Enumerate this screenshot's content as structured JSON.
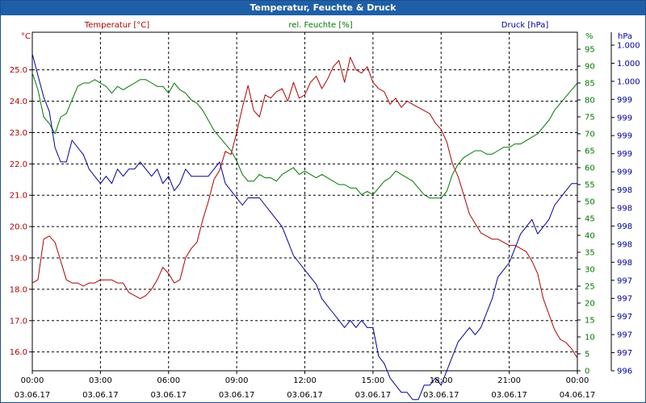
{
  "window": {
    "title": "Temperatur, Feuchte & Druck"
  },
  "chart_data": {
    "type": "line",
    "title": "Temperatur, Feuchte & Druck",
    "grid": true,
    "colors": {
      "temperature": "#b00000",
      "humidity": "#007700",
      "pressure": "#00009a"
    },
    "x_ticks": [
      {
        "time": "00:00",
        "date": "03.06.17"
      },
      {
        "time": "03:00",
        "date": "03.06.17"
      },
      {
        "time": "06:00",
        "date": "03.06.17"
      },
      {
        "time": "09:00",
        "date": "03.06.17"
      },
      {
        "time": "12:00",
        "date": "03.06.17"
      },
      {
        "time": "15:00",
        "date": "03.06.17"
      },
      {
        "time": "18:00",
        "date": "03.06.17"
      },
      {
        "time": "21:00",
        "date": "03.06.17"
      },
      {
        "time": "00:00",
        "date": "04.06.17"
      }
    ],
    "x_range_hours": [
      0,
      24
    ],
    "axes": {
      "temperature": {
        "label": "Temperatur [°C]",
        "unit": "°C",
        "min": 15.4,
        "max": 26.2,
        "ticks": [
          "16.0",
          "17.0",
          "18.0",
          "19.0",
          "20.0",
          "21.0",
          "22.0",
          "23.0",
          "24.0",
          "25.0"
        ]
      },
      "humidity": {
        "label": "rel. Feuchte [%]",
        "unit": "%",
        "min": 0,
        "max": 100,
        "ticks": [
          "0",
          "5",
          "10",
          "15",
          "20",
          "25",
          "30",
          "35",
          "40",
          "45",
          "50",
          "55",
          "60",
          "65",
          "70",
          "75",
          "80",
          "85",
          "90",
          "95"
        ]
      },
      "pressure": {
        "label": "Druck [hPa]",
        "unit": "hPa",
        "min": 996.0,
        "max": 1000.7,
        "ticks": [
          "996",
          "997",
          "997",
          "997",
          "997",
          "997",
          "998",
          "998",
          "998",
          "998",
          "998",
          "999",
          "999",
          "999",
          "999",
          "999",
          "1.000",
          "1.000",
          "1.000"
        ]
      }
    },
    "series": [
      {
        "name": "Temperatur [°C]",
        "axis": "temperature",
        "x": [
          0,
          0.25,
          0.5,
          0.75,
          1,
          1.25,
          1.5,
          1.75,
          2,
          2.25,
          2.5,
          2.75,
          3,
          3.25,
          3.5,
          3.75,
          4,
          4.25,
          4.5,
          4.75,
          5,
          5.25,
          5.5,
          5.75,
          6,
          6.25,
          6.5,
          6.75,
          7,
          7.25,
          7.5,
          7.75,
          8,
          8.25,
          8.5,
          8.75,
          9,
          9.25,
          9.5,
          9.75,
          10,
          10.25,
          10.5,
          10.75,
          11,
          11.25,
          11.5,
          11.75,
          12,
          12.25,
          12.5,
          12.75,
          13,
          13.25,
          13.5,
          13.75,
          14,
          14.25,
          14.5,
          14.75,
          15,
          15.25,
          15.5,
          15.75,
          16,
          16.25,
          16.5,
          16.75,
          17,
          17.25,
          17.5,
          17.75,
          18,
          18.25,
          18.5,
          18.75,
          19,
          19.25,
          19.5,
          19.75,
          20,
          20.25,
          20.5,
          20.75,
          21,
          21.25,
          21.5,
          21.75,
          22,
          22.25,
          22.5,
          22.75,
          23,
          23.25,
          23.5,
          23.75,
          24
        ],
        "values": [
          18.2,
          18.3,
          19.6,
          19.7,
          19.5,
          18.9,
          18.3,
          18.2,
          18.2,
          18.1,
          18.2,
          18.2,
          18.3,
          18.3,
          18.3,
          18.2,
          18.2,
          17.9,
          17.8,
          17.7,
          17.8,
          18.0,
          18.3,
          18.7,
          18.5,
          18.2,
          18.3,
          19.0,
          19.3,
          19.5,
          20.2,
          20.8,
          21.5,
          21.8,
          22.4,
          22.3,
          23.0,
          23.8,
          24.5,
          23.7,
          23.5,
          24.2,
          24.1,
          24.3,
          24.4,
          24.0,
          24.6,
          24.1,
          24.2,
          24.6,
          24.8,
          24.4,
          24.7,
          25.1,
          25.3,
          24.6,
          25.4,
          25.0,
          24.9,
          25.1,
          24.6,
          24.4,
          24.3,
          23.9,
          24.1,
          23.8,
          24.0,
          23.9,
          23.8,
          23.7,
          23.6,
          23.3,
          23.1,
          22.7,
          22.0,
          21.6,
          21.0,
          20.4,
          20.1,
          19.8,
          19.7,
          19.6,
          19.6,
          19.5,
          19.4,
          19.4,
          19.3,
          19.2,
          18.9,
          18.5,
          17.7,
          17.2,
          16.7,
          16.4,
          16.3,
          16.1,
          15.8
        ],
        "color": "#b00000"
      },
      {
        "name": "rel. Feuchte [%]",
        "axis": "humidity",
        "x": [
          0,
          0.25,
          0.5,
          0.75,
          1,
          1.25,
          1.5,
          1.75,
          2,
          2.25,
          2.5,
          2.75,
          3,
          3.25,
          3.5,
          3.75,
          4,
          4.25,
          4.5,
          4.75,
          5,
          5.25,
          5.5,
          5.75,
          6,
          6.25,
          6.5,
          6.75,
          7,
          7.25,
          7.5,
          7.75,
          8,
          8.25,
          8.5,
          8.75,
          9,
          9.25,
          9.5,
          9.75,
          10,
          10.25,
          10.5,
          10.75,
          11,
          11.25,
          11.5,
          11.75,
          12,
          12.25,
          12.5,
          12.75,
          13,
          13.25,
          13.5,
          13.75,
          14,
          14.25,
          14.5,
          14.75,
          15,
          15.25,
          15.5,
          15.75,
          16,
          16.25,
          16.5,
          16.75,
          17,
          17.25,
          17.5,
          17.75,
          18,
          18.25,
          18.5,
          18.75,
          19,
          19.25,
          19.5,
          19.75,
          20,
          20.25,
          20.5,
          20.75,
          21,
          21.25,
          21.5,
          21.75,
          22,
          22.25,
          22.5,
          22.75,
          23,
          23.25,
          23.5,
          23.75,
          24
        ],
        "values": [
          88,
          83,
          75,
          73,
          70,
          75,
          76,
          80,
          84,
          85,
          85,
          86,
          85,
          84,
          82,
          84,
          83,
          84,
          85,
          86,
          86,
          85,
          84,
          84,
          82,
          85,
          83,
          82,
          80,
          79,
          77,
          74,
          71,
          69,
          67,
          65,
          62,
          58,
          56,
          56,
          58,
          57,
          57,
          56,
          58,
          59,
          60,
          58,
          59,
          58,
          57,
          58,
          57,
          56,
          55,
          55,
          54,
          54,
          52,
          53,
          52,
          54,
          56,
          57,
          59,
          58,
          57,
          56,
          54,
          52,
          51,
          51,
          51,
          53,
          58,
          61,
          63,
          64,
          65,
          65,
          64,
          64,
          65,
          66,
          66,
          67,
          67,
          68,
          69,
          70,
          72,
          74,
          77,
          79,
          81,
          83,
          85
        ],
        "color": "#007700"
      },
      {
        "name": "Druck [hPa]",
        "axis": "pressure",
        "x": [
          0,
          0.25,
          0.5,
          0.75,
          1,
          1.25,
          1.5,
          1.75,
          2,
          2.25,
          2.5,
          2.75,
          3,
          3.25,
          3.5,
          3.75,
          4,
          4.25,
          4.5,
          4.75,
          5,
          5.25,
          5.5,
          5.75,
          6,
          6.25,
          6.5,
          6.75,
          7,
          7.25,
          7.5,
          7.75,
          8,
          8.25,
          8.5,
          8.75,
          9,
          9.25,
          9.5,
          9.75,
          10,
          10.25,
          10.5,
          10.75,
          11,
          11.25,
          11.5,
          11.75,
          12,
          12.25,
          12.5,
          12.75,
          13,
          13.25,
          13.5,
          13.75,
          14,
          14.25,
          14.5,
          14.75,
          15,
          15.25,
          15.5,
          15.75,
          16,
          16.25,
          16.5,
          16.75,
          17,
          17.25,
          17.5,
          17.75,
          18,
          18.25,
          18.5,
          18.75,
          19,
          19.25,
          19.5,
          19.75,
          20,
          20.25,
          20.5,
          20.75,
          21,
          21.25,
          21.5,
          21.75,
          22,
          22.25,
          22.5,
          22.75,
          23,
          23.25,
          23.5,
          23.75,
          24
        ],
        "values": [
          1000.4,
          1000.1,
          999.8,
          999.6,
          999.1,
          998.9,
          998.9,
          999.2,
          999.1,
          999.0,
          998.8,
          998.7,
          998.6,
          998.7,
          998.6,
          998.8,
          998.7,
          998.8,
          998.8,
          998.9,
          998.8,
          998.7,
          998.8,
          998.6,
          998.7,
          998.5,
          998.6,
          998.8,
          998.7,
          998.7,
          998.7,
          998.7,
          998.8,
          998.9,
          998.6,
          998.5,
          998.4,
          998.3,
          998.4,
          998.4,
          998.4,
          998.3,
          998.2,
          998.1,
          998.0,
          997.8,
          997.6,
          997.5,
          997.4,
          997.3,
          997.2,
          997.0,
          996.9,
          996.8,
          996.7,
          996.6,
          996.7,
          996.6,
          996.7,
          996.6,
          996.6,
          996.2,
          996.1,
          995.9,
          995.8,
          995.7,
          995.7,
          995.6,
          995.6,
          995.8,
          995.8,
          995.9,
          995.8,
          996.0,
          996.2,
          996.4,
          996.5,
          996.6,
          996.5,
          996.6,
          996.8,
          997.0,
          997.3,
          997.4,
          997.5,
          997.7,
          997.9,
          998.0,
          998.1,
          997.9,
          998.0,
          998.1,
          998.3,
          998.4,
          998.5,
          998.6,
          998.6
        ],
        "color": "#00009a"
      }
    ]
  }
}
